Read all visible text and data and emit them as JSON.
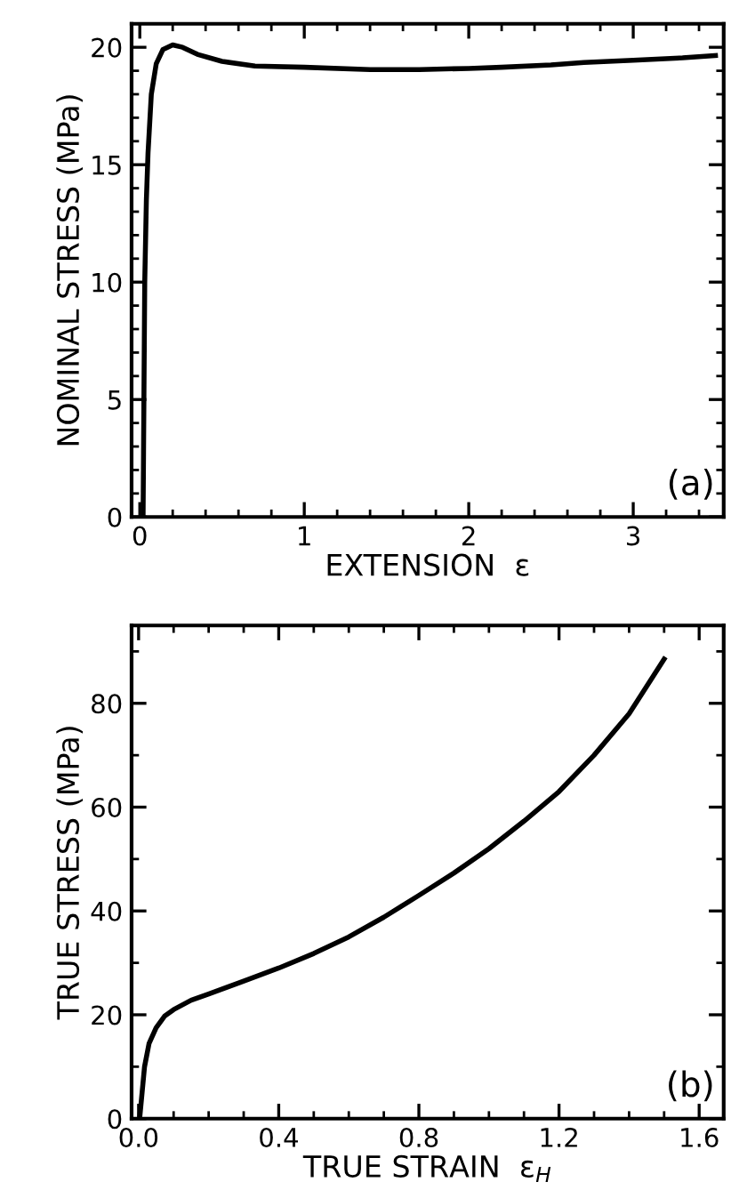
{
  "chart_data": [
    {
      "type": "line",
      "xlabel": "EXTENSION  ε",
      "ylabel": "NOMINAL STRESS (MPa)",
      "annotations": [
        "(a)"
      ],
      "xlim": [
        -0.05,
        3.55
      ],
      "ylim": [
        0,
        21
      ],
      "xticks": [
        0,
        {
          "value": 0.2,
          "label": null
        },
        {
          "value": 0.4,
          "label": null
        },
        {
          "value": 0.6,
          "label": null
        },
        {
          "value": 0.8,
          "label": null
        },
        1,
        {
          "value": 1.2,
          "label": null
        },
        {
          "value": 1.4,
          "label": null
        },
        {
          "value": 1.6,
          "label": null
        },
        {
          "value": 1.8,
          "label": null
        },
        2,
        {
          "value": 2.2,
          "label": null
        },
        {
          "value": 2.4,
          "label": null
        },
        {
          "value": 2.6,
          "label": null
        },
        {
          "value": 2.8,
          "label": null
        },
        3,
        {
          "value": 3.2,
          "label": null
        },
        {
          "value": 3.4,
          "label": null
        }
      ],
      "yticks": [
        0,
        {
          "value": 1,
          "label": null
        },
        {
          "value": 2,
          "label": null
        },
        {
          "value": 3,
          "label": null
        },
        {
          "value": 4,
          "label": null
        },
        5,
        {
          "value": 6,
          "label": null
        },
        {
          "value": 7,
          "label": null
        },
        {
          "value": 8,
          "label": null
        },
        {
          "value": 9,
          "label": null
        },
        10,
        {
          "value": 11,
          "label": null
        },
        {
          "value": 12,
          "label": null
        },
        {
          "value": 13,
          "label": null
        },
        {
          "value": 14,
          "label": null
        },
        15,
        {
          "value": 16,
          "label": null
        },
        {
          "value": 17,
          "label": null
        },
        {
          "value": 18,
          "label": null
        },
        {
          "value": 19,
          "label": null
        },
        20
      ],
      "grid": false,
      "marker": "none",
      "line_style": "solid",
      "series": [
        {
          "color": "#000000",
          "x": [
            0.02,
            0.025,
            0.03,
            0.04,
            0.05,
            0.07,
            0.1,
            0.14,
            0.2,
            0.26,
            0.35,
            0.5,
            0.7,
            1.0,
            1.4,
            1.7,
            2.0,
            2.2,
            2.5,
            2.7,
            3.0,
            3.3,
            3.5
          ],
          "values": [
            0,
            5,
            10,
            13.5,
            15.5,
            18,
            19.3,
            19.9,
            20.1,
            20.0,
            19.7,
            19.4,
            19.2,
            19.15,
            19.05,
            19.05,
            19.1,
            19.15,
            19.25,
            19.35,
            19.45,
            19.55,
            19.65
          ]
        }
      ]
    },
    {
      "type": "line",
      "xlabel": "TRUE STRAIN  ε$_{H}$",
      "ylabel": "TRUE STRESS (MPa)",
      "annotations": [
        "(b)"
      ],
      "xlim": [
        -0.02,
        1.67
      ],
      "ylim": [
        0,
        95
      ],
      "xticks": [
        {
          "value": 0,
          "label": "0.0"
        },
        {
          "value": 0.1,
          "label": null
        },
        {
          "value": 0.2,
          "label": null
        },
        {
          "value": 0.3,
          "label": null
        },
        0.4,
        {
          "value": 0.5,
          "label": null
        },
        {
          "value": 0.6,
          "label": null
        },
        {
          "value": 0.7,
          "label": null
        },
        0.8,
        {
          "value": 0.9,
          "label": null
        },
        {
          "value": 1.0,
          "label": null
        },
        {
          "value": 1.1,
          "label": null
        },
        1.2,
        {
          "value": 1.3,
          "label": null
        },
        {
          "value": 1.4,
          "label": null
        },
        {
          "value": 1.5,
          "label": null
        },
        1.6
      ],
      "yticks": [
        0,
        {
          "value": 10,
          "label": null
        },
        20,
        {
          "value": 30,
          "label": null
        },
        40,
        {
          "value": 50,
          "label": null
        },
        60,
        {
          "value": 70,
          "label": null
        },
        80,
        {
          "value": 90,
          "label": null
        }
      ],
      "grid": false,
      "marker": "none",
      "line_style": "solid",
      "series": [
        {
          "color": "#000000",
          "x": [
            0.003,
            0.01,
            0.017,
            0.03,
            0.05,
            0.075,
            0.1,
            0.15,
            0.2,
            0.3,
            0.4,
            0.5,
            0.6,
            0.7,
            0.8,
            0.9,
            1.0,
            1.1,
            1.2,
            1.3,
            1.4,
            1.5
          ],
          "values": [
            0,
            5,
            10,
            14.5,
            17.5,
            19.8,
            21,
            22.8,
            24,
            26.5,
            29,
            31.8,
            35,
            38.8,
            43,
            47.3,
            52,
            57.3,
            63,
            70,
            78,
            88.5
          ]
        }
      ]
    }
  ]
}
